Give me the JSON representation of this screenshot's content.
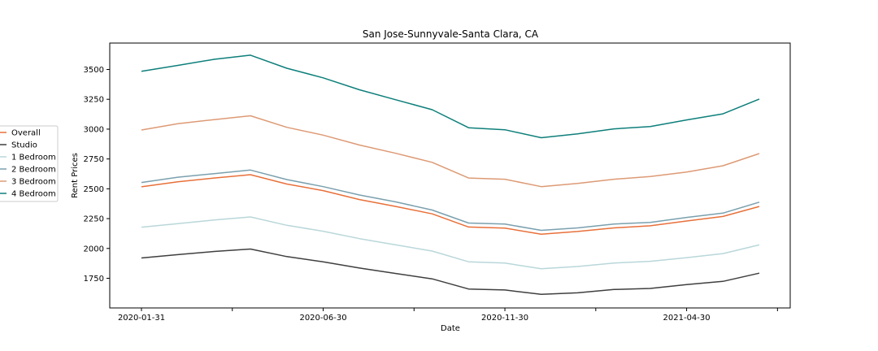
{
  "chart_data": {
    "type": "line",
    "title": "San Jose-Sunnyvale-Santa Clara, CA",
    "xlabel": "Date",
    "ylabel": "Rent Prices",
    "x": [
      "2020-01-31",
      "2020-02-29",
      "2020-03-31",
      "2020-04-30",
      "2020-05-31",
      "2020-06-30",
      "2020-07-31",
      "2020-08-31",
      "2020-09-30",
      "2020-10-31",
      "2020-11-30",
      "2020-12-31",
      "2021-01-31",
      "2021-02-28",
      "2021-03-31",
      "2021-04-30",
      "2021-05-31",
      "2021-06-30"
    ],
    "x_tick_labels": [
      "2020-01-31",
      "2020-06-30",
      "2020-11-30",
      "2021-04-30"
    ],
    "x_tick_indices": [
      0,
      2.5,
      5,
      7.5,
      10,
      12.5,
      15,
      17.5
    ],
    "x_tick_label_map": {
      "0": "2020-01-31",
      "5": "2020-06-30",
      "10": "2020-11-30",
      "15": "2021-04-30"
    },
    "yticks": [
      1750,
      2000,
      2250,
      2500,
      2750,
      3000,
      3250,
      3500
    ],
    "ylim": [
      1625,
      3680
    ],
    "grid": false,
    "legend_position": "left, outside plot",
    "series": [
      {
        "name": "Overall",
        "color": "#e8703a",
        "values": [
          2517,
          2558,
          2590,
          2618,
          2540,
          2485,
          2410,
          2352,
          2290,
          2180,
          2170,
          2120,
          2142,
          2172,
          2190,
          2230,
          2268,
          2352
        ]
      },
      {
        "name": "Studio",
        "color": "#3f3f3f",
        "values": [
          1920,
          1948,
          1975,
          1995,
          1932,
          1888,
          1836,
          1790,
          1745,
          1660,
          1652,
          1615,
          1628,
          1656,
          1665,
          1697,
          1724,
          1793
        ]
      },
      {
        "name": "1 Bedroom",
        "color": "#b9d7da",
        "values": [
          2178,
          2208,
          2238,
          2264,
          2194,
          2144,
          2082,
          2030,
          1978,
          1888,
          1877,
          1830,
          1849,
          1878,
          1892,
          1923,
          1957,
          2030
        ]
      },
      {
        "name": "2 Bedroom",
        "color": "#7aa0ae",
        "values": [
          2553,
          2597,
          2627,
          2657,
          2577,
          2518,
          2448,
          2390,
          2322,
          2213,
          2204,
          2152,
          2172,
          2205,
          2218,
          2260,
          2296,
          2388
        ]
      },
      {
        "name": "3 Bedroom",
        "color": "#dd9a75",
        "values": [
          2993,
          3045,
          3080,
          3112,
          3015,
          2950,
          2867,
          2797,
          2722,
          2590,
          2580,
          2518,
          2545,
          2580,
          2603,
          2640,
          2693,
          2795
        ]
      },
      {
        "name": "4 Bedroom",
        "color": "#0d7f7a",
        "values": [
          3485,
          3534,
          3585,
          3620,
          3510,
          3430,
          3330,
          3246,
          3163,
          3012,
          2995,
          2928,
          2960,
          3002,
          3022,
          3077,
          3128,
          3252
        ]
      }
    ]
  }
}
